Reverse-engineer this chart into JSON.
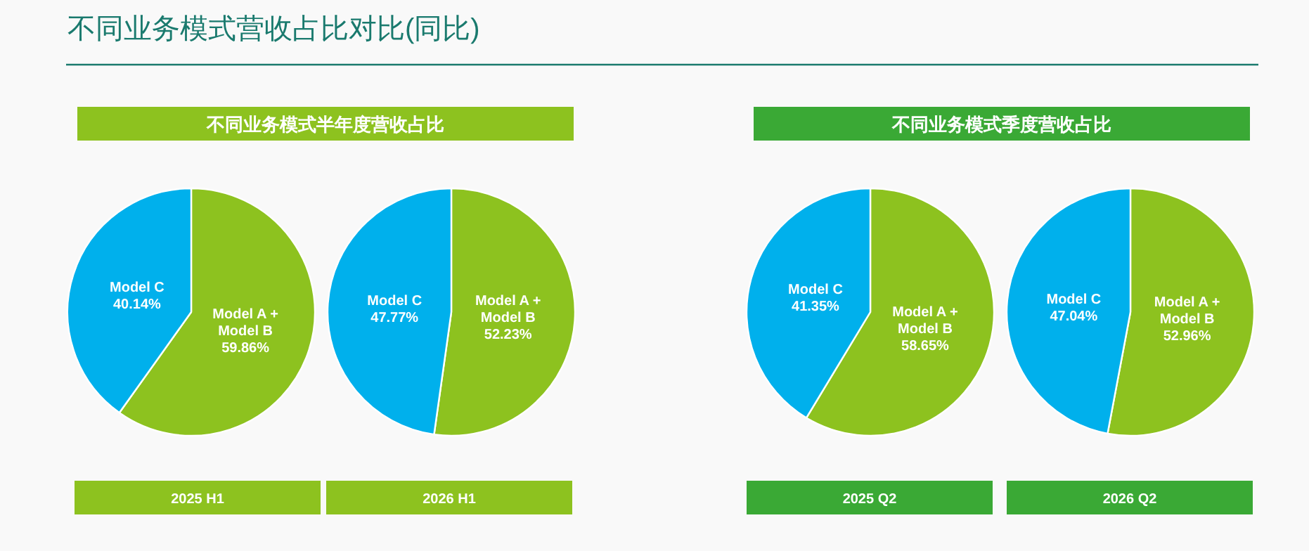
{
  "chart_data": [
    {
      "type": "other",
      "title": "不同业务模式营收占比对比(同比)"
    },
    {
      "type": "pie",
      "subtitle": "不同业务模式半年度营收占比",
      "xlabel": "2025 H1",
      "categories": [
        "Model A + Model B",
        "Model C"
      ],
      "values": [
        59.86,
        40.14
      ],
      "colors": [
        "#8dc21f",
        "#00b0ec"
      ],
      "value_labels": [
        "59.86%",
        "40.14%"
      ]
    },
    {
      "type": "pie",
      "xlabel": "2026 H1",
      "categories": [
        "Model A + Model B",
        "Model C"
      ],
      "values": [
        52.23,
        47.77
      ],
      "colors": [
        "#8dc21f",
        "#00b0ec"
      ],
      "value_labels": [
        "52.23%",
        "47.77%"
      ]
    },
    {
      "type": "pie",
      "subtitle": "不同业务模式季度营收占比",
      "xlabel": "2025 Q2",
      "categories": [
        "Model A + Model B",
        "Model C"
      ],
      "values": [
        58.65,
        41.35
      ],
      "colors": [
        "#8dc21f",
        "#00b0ec"
      ],
      "value_labels": [
        "58.65%",
        "41.35%"
      ]
    },
    {
      "type": "pie",
      "xlabel": "2026 Q2",
      "categories": [
        "Model A + Model B",
        "Model C"
      ],
      "values": [
        52.96,
        47.04
      ],
      "colors": [
        "#8dc21f",
        "#00b0ec"
      ],
      "value_labels": [
        "52.96%",
        "47.04%"
      ]
    }
  ]
}
